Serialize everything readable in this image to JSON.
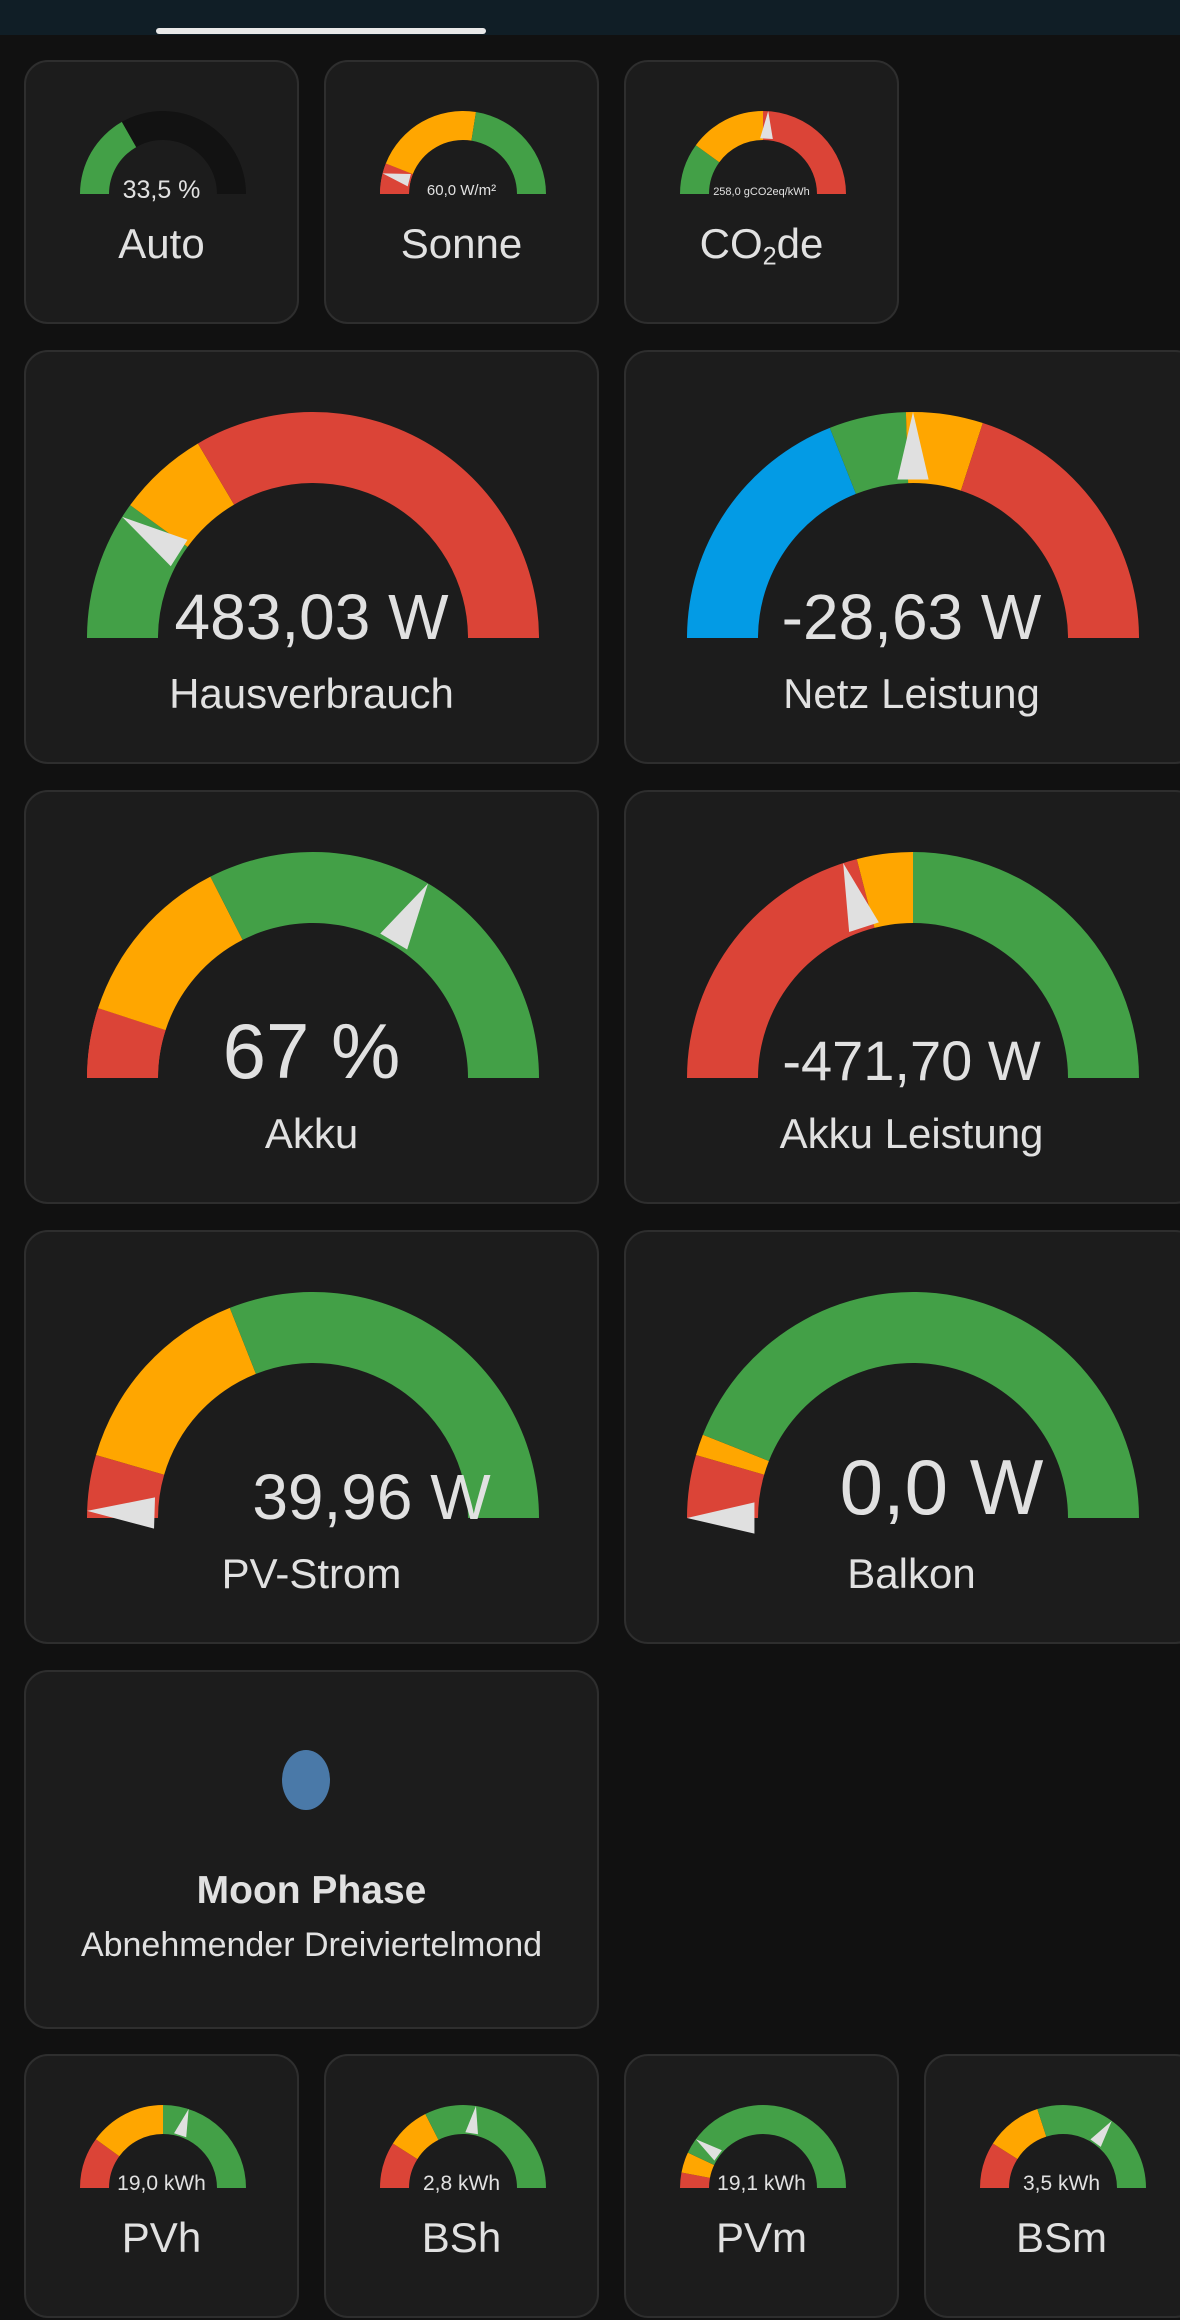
{
  "colors": {
    "green": "#43a047",
    "orange": "#ffa600",
    "red": "#db4437",
    "blue": "#039be5",
    "track": "#121212",
    "needle": "#e0e0e0"
  },
  "gauges": {
    "auto": {
      "value": "33,5 %",
      "name": "Auto",
      "level": 0.335,
      "segments": "green",
      "needle": false
    },
    "sonne": {
      "value": "60,0 W/m²",
      "name": "Sonne",
      "level": 0.08,
      "segments": "red-orange-green",
      "needle": true
    },
    "co2": {
      "value": "258,0 gCO2eq/kWh",
      "name_prefix": "CO",
      "name_sub": "2",
      "name_suffix": "de",
      "level": 0.52,
      "segments": "green-orange-red",
      "needle": true
    },
    "haus": {
      "value": "483,03 W",
      "name": "Hausverbrauch",
      "level": 0.18,
      "needle": true
    },
    "netz": {
      "value": "-28,63 W",
      "name": "Netz Leistung",
      "level": 0.5,
      "needle": true
    },
    "akku": {
      "value": "67 %",
      "name": "Akku",
      "level": 0.67,
      "needle": true
    },
    "akku_l": {
      "value": "-471,70 W",
      "name": "Akku Leistung",
      "level": 0.4,
      "needle": true
    },
    "pv": {
      "value": "39,96 W",
      "name": "PV-Strom",
      "level": 0.01,
      "needle": true
    },
    "balkon": {
      "value": "0,0 W",
      "name": "Balkon",
      "level": 0.0,
      "needle": true
    },
    "pvh": {
      "value": "19,0 kWh",
      "name": "PVh",
      "level": 0.6,
      "needle": true
    },
    "bsh": {
      "value": "2,8 kWh",
      "name": "BSh",
      "level": 0.55,
      "needle": true
    },
    "pvm": {
      "value": "19,1 kWh",
      "name": "PVm",
      "level": 0.2,
      "needle": true
    },
    "bsm": {
      "value": "3,5 kWh",
      "name": "BSm",
      "level": 0.7,
      "needle": true
    }
  },
  "moon": {
    "title": "Moon Phase",
    "state": "Abnehmender Dreiviertelmond"
  }
}
